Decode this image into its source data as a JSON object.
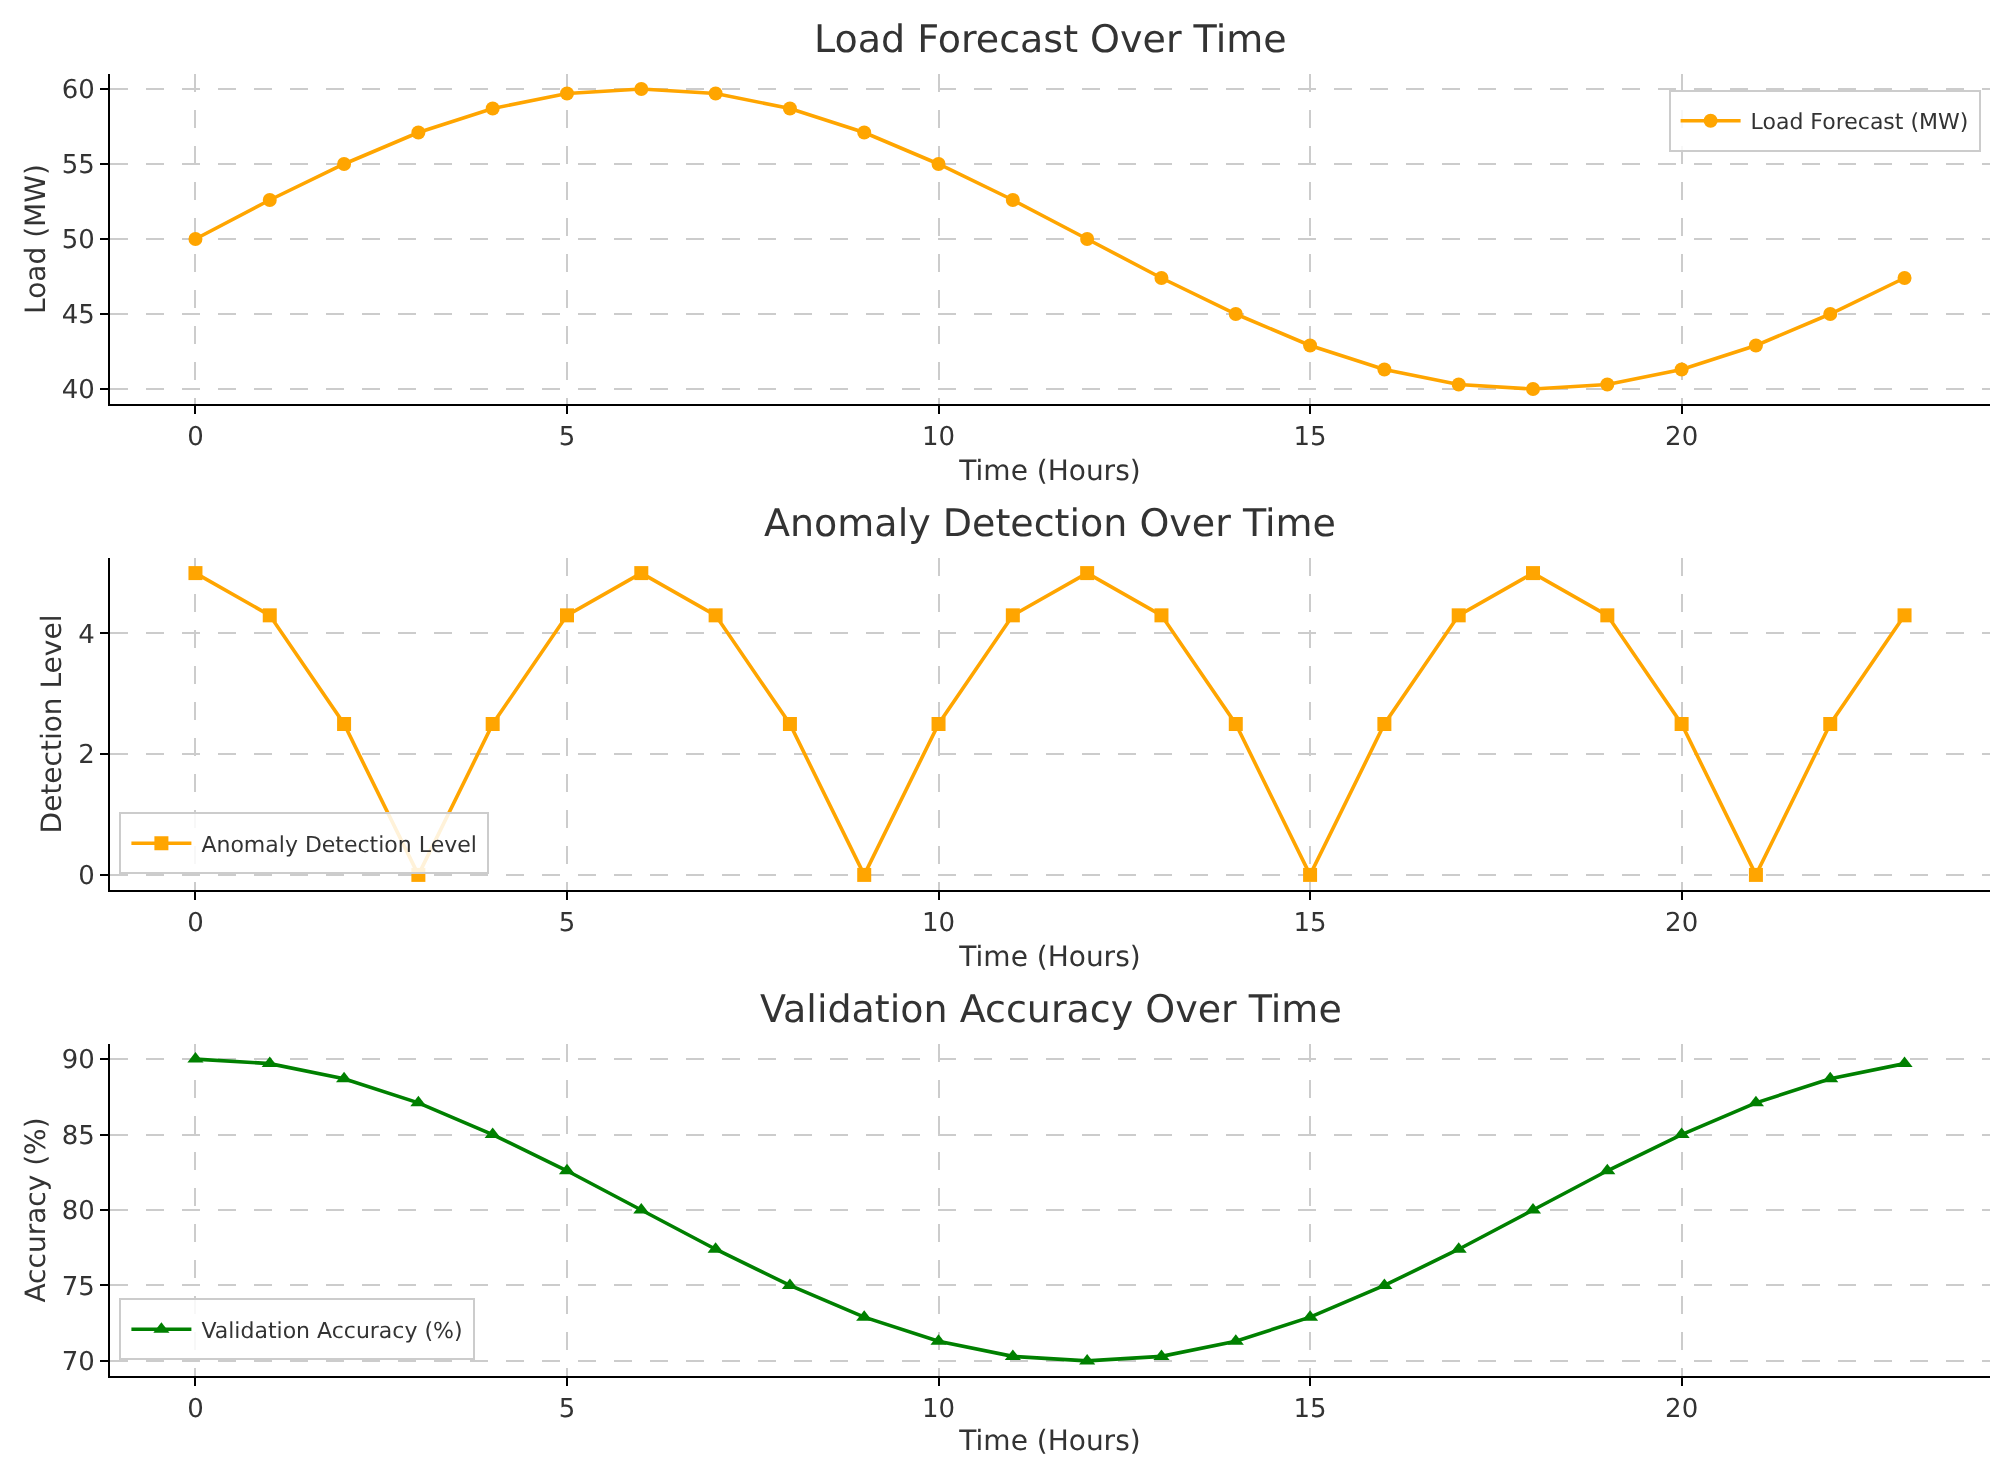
{
  "chart_data": [
    {
      "type": "line",
      "title": "Load Forecast Over Time",
      "xlabel": "Time (Hours)",
      "ylabel": "Load (MW)",
      "x": [
        0,
        1,
        2,
        3,
        4,
        5,
        6,
        7,
        8,
        9,
        10,
        11,
        12,
        13,
        14,
        15,
        16,
        17,
        18,
        19,
        20,
        21,
        22,
        23
      ],
      "series": [
        {
          "name": "Load Forecast (MW)",
          "color": "#ffa500",
          "values": [
            50,
            52.6,
            55,
            57.1,
            58.7,
            59.7,
            60,
            59.7,
            58.7,
            57.1,
            55,
            52.6,
            50,
            47.4,
            45,
            42.9,
            41.3,
            40.3,
            40,
            40.3,
            41.3,
            42.9,
            45,
            47.4
          ]
        }
      ],
      "xlim": [
        -1.15,
        24.15
      ],
      "xticks": [
        0,
        5,
        10,
        15,
        20
      ],
      "ylim": [
        39,
        61
      ],
      "yticks": [
        40,
        45,
        50,
        55,
        60
      ],
      "grid": true,
      "legend": "top right",
      "marker": "circle",
      "line_style": "solid"
    },
    {
      "type": "line",
      "title": "Anomaly Detection Over Time",
      "xlabel": "Time (Hours)",
      "ylabel": "Detection Level",
      "x": [
        0,
        1,
        2,
        3,
        4,
        5,
        6,
        7,
        8,
        9,
        10,
        11,
        12,
        13,
        14,
        15,
        16,
        17,
        18,
        19,
        20,
        21,
        22,
        23
      ],
      "series": [
        {
          "name": "Anomaly Detection Level",
          "color": "#ffa500",
          "values": [
            5,
            4.3,
            2.5,
            0,
            2.5,
            4.3,
            5,
            4.3,
            2.5,
            0,
            2.5,
            4.3,
            5,
            4.3,
            2.5,
            0,
            2.5,
            4.3,
            5,
            4.3,
            2.5,
            0,
            2.5,
            4.3
          ]
        }
      ],
      "xlim": [
        -1.15,
        24.15
      ],
      "xticks": [
        0,
        5,
        10,
        15,
        20
      ],
      "ylim": [
        -0.25,
        5.25
      ],
      "yticks": [
        0,
        2,
        4
      ],
      "grid": true,
      "legend": "bottom left",
      "marker": "square",
      "line_style": "solid"
    },
    {
      "type": "line",
      "title": "Validation Accuracy Over Time",
      "xlabel": "Time (Hours)",
      "ylabel": "Accuracy (%)",
      "x": [
        0,
        1,
        2,
        3,
        4,
        5,
        6,
        7,
        8,
        9,
        10,
        11,
        12,
        13,
        14,
        15,
        16,
        17,
        18,
        19,
        20,
        21,
        22,
        23
      ],
      "series": [
        {
          "name": "Validation Accuracy (%)",
          "color": "#008000",
          "values": [
            90,
            89.7,
            88.7,
            87.1,
            85,
            82.6,
            80,
            77.4,
            75,
            72.9,
            71.3,
            70.3,
            70,
            70.3,
            71.3,
            72.9,
            75,
            77.4,
            80,
            82.6,
            85,
            87.1,
            88.7,
            89.7
          ]
        }
      ],
      "xlim": [
        -1.15,
        24.15
      ],
      "xticks": [
        0,
        5,
        10,
        15,
        20
      ],
      "ylim": [
        69,
        91
      ],
      "yticks": [
        70,
        75,
        80,
        85,
        90
      ],
      "grid": true,
      "legend": "bottom left",
      "marker": "triangle",
      "line_style": "solid"
    }
  ]
}
